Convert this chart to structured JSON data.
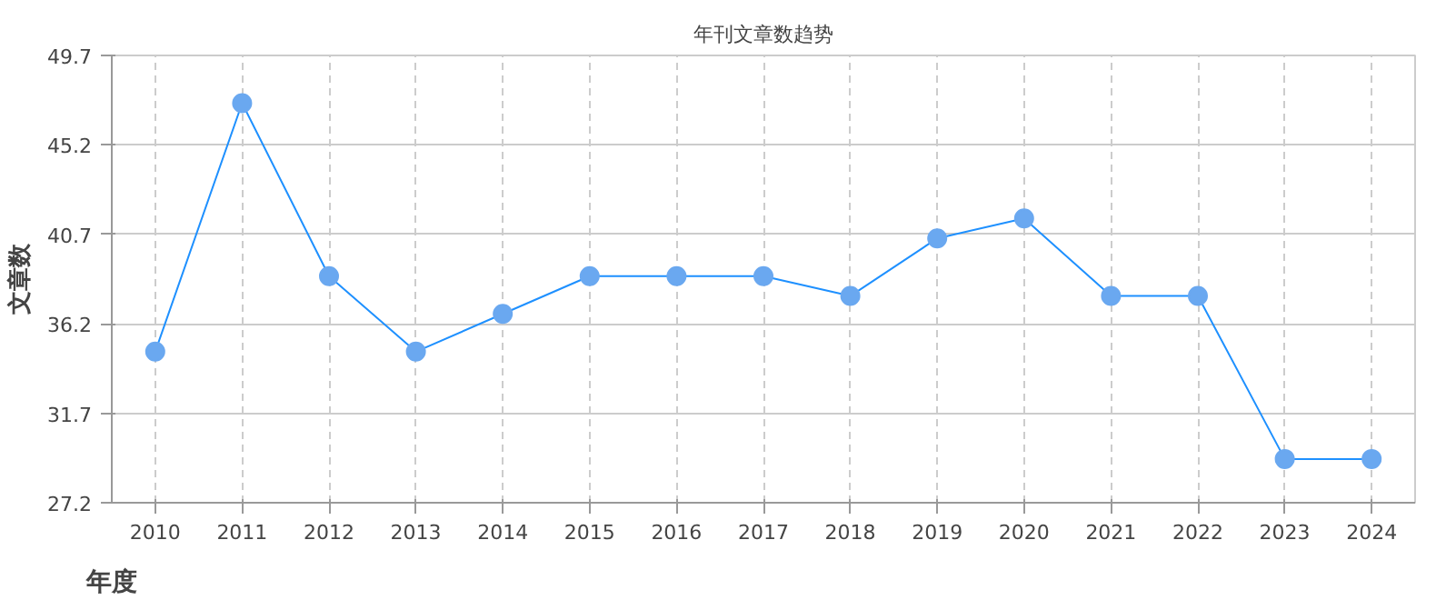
{
  "chart_data": {
    "type": "line",
    "title": "年刊文章数趋势",
    "xlabel": "年度",
    "ylabel": "文章数",
    "categories": [
      "2010",
      "2011",
      "2012",
      "2013",
      "2014",
      "2015",
      "2016",
      "2017",
      "2018",
      "2019",
      "2020",
      "2021",
      "2022",
      "2023",
      "2024"
    ],
    "series": [
      {
        "color": "#1e90ff",
        "values": [
          34.8,
          47.3,
          38.6,
          34.8,
          36.7,
          38.6,
          38.6,
          38.6,
          37.6,
          40.5,
          41.5,
          37.6,
          37.6,
          29.4,
          29.4
        ]
      }
    ],
    "ylim": [
      27.2,
      49.7
    ],
    "yticks": [
      27.2,
      31.7,
      36.2,
      40.7,
      45.2,
      49.7
    ],
    "grid": true,
    "marker": "circle",
    "line_style": "solid"
  }
}
